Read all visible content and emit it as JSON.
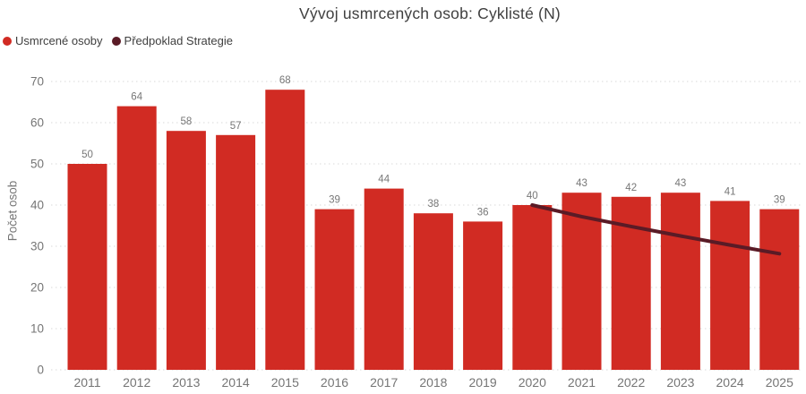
{
  "title": "Vývoj usmrcených osob: Cyklisté (N)",
  "legend": {
    "items": [
      {
        "label": "Usmrcené osoby",
        "color": "#d12b23"
      },
      {
        "label": "Předpoklad Strategie",
        "color": "#5a1b26"
      }
    ]
  },
  "y_axis": {
    "title": "Počet osob",
    "ticks": [
      0,
      10,
      20,
      30,
      40,
      50,
      60,
      70
    ]
  },
  "colors": {
    "bar": "#d12b23",
    "strategy_line": "#5a1b26",
    "gridline": "#d9d9d9",
    "axis_text": "#757575",
    "value_label": "#777777",
    "title_text": "#3f3f3f"
  },
  "chart_data": {
    "type": "bar",
    "title": "Vývoj usmrcených osob: Cyklisté (N)",
    "categories": [
      "2011",
      "2012",
      "2013",
      "2014",
      "2015",
      "2016",
      "2017",
      "2018",
      "2019",
      "2020",
      "2021",
      "2022",
      "2023",
      "2024",
      "2025"
    ],
    "series": [
      {
        "name": "Usmrcené osoby",
        "type": "bar",
        "color": "#d12b23",
        "values": [
          50,
          64,
          58,
          57,
          68,
          39,
          44,
          38,
          36,
          40,
          43,
          42,
          43,
          41,
          39
        ]
      },
      {
        "name": "Předpoklad Strategie",
        "type": "line",
        "color": "#5a1b26",
        "x": [
          "2020",
          "2021",
          "2022",
          "2023",
          "2024",
          "2025"
        ],
        "values": [
          40,
          37.2,
          34.8,
          32.5,
          30.3,
          28.2
        ]
      }
    ],
    "xlabel": "",
    "ylabel": "Počet osob",
    "ylim": [
      0,
      70
    ],
    "ytick_step": 10,
    "grid": "dotted-horizontal",
    "legend_position": "top-left",
    "bar_labels": true
  }
}
